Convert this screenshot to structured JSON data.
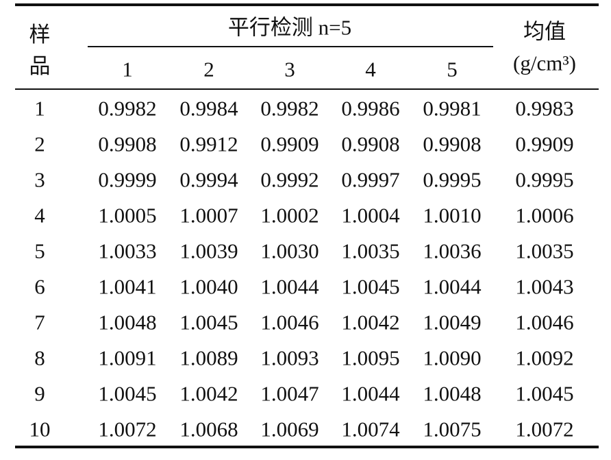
{
  "header": {
    "sample": "样品",
    "group": "平行检测 n=5",
    "columns": [
      "1",
      "2",
      "3",
      "4",
      "5"
    ],
    "mean": "均值",
    "unit": "(g/cm³)"
  },
  "table": {
    "rows": [
      [
        "1",
        "0.9982",
        "0.9984",
        "0.9982",
        "0.9986",
        "0.9981",
        "0.9983"
      ],
      [
        "2",
        "0.9908",
        "0.9912",
        "0.9909",
        "0.9908",
        "0.9908",
        "0.9909"
      ],
      [
        "3",
        "0.9999",
        "0.9994",
        "0.9992",
        "0.9997",
        "0.9995",
        "0.9995"
      ],
      [
        "4",
        "1.0005",
        "1.0007",
        "1.0002",
        "1.0004",
        "1.0010",
        "1.0006"
      ],
      [
        "5",
        "1.0033",
        "1.0039",
        "1.0030",
        "1.0035",
        "1.0036",
        "1.0035"
      ],
      [
        "6",
        "1.0041",
        "1.0040",
        "1.0044",
        "1.0045",
        "1.0044",
        "1.0043"
      ],
      [
        "7",
        "1.0048",
        "1.0045",
        "1.0046",
        "1.0042",
        "1.0049",
        "1.0046"
      ],
      [
        "8",
        "1.0091",
        "1.0089",
        "1.0093",
        "1.0095",
        "1.0090",
        "1.0092"
      ],
      [
        "9",
        "1.0045",
        "1.0042",
        "1.0047",
        "1.0044",
        "1.0048",
        "1.0045"
      ],
      [
        "10",
        "1.0072",
        "1.0068",
        "1.0069",
        "1.0074",
        "1.0075",
        "1.0072"
      ]
    ]
  }
}
